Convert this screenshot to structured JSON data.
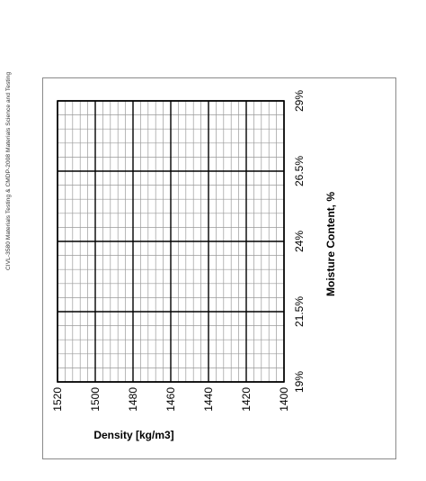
{
  "header": {
    "text": "CIVL-3580 Materials Testing & CMDP-2008 Materials Science and Testing"
  },
  "chart_data": {
    "type": "scatter",
    "orientation": "rotated-90",
    "xlabel": "Moisture Content, %",
    "ylabel": "Density [kg/m3]",
    "x_ticks": [
      "19%",
      "21.5%",
      "24%",
      "26.5%",
      "29%"
    ],
    "x_range": [
      19,
      29
    ],
    "y_ticks": [
      "1520",
      "1500",
      "1480",
      "1460",
      "1440",
      "1420",
      "1400"
    ],
    "y_range": [
      1400,
      1520
    ],
    "series": [],
    "grid": true,
    "colors": {
      "grid_major": "#000000",
      "grid_minor": "#9a9a9a",
      "frame": "#8a8a8a"
    }
  }
}
